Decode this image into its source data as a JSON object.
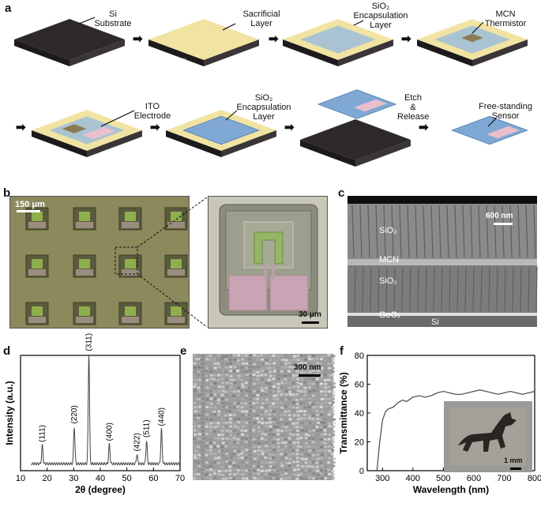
{
  "panels": {
    "a": {
      "label": "a",
      "steps": [
        {
          "l1": "Si",
          "l2": "Substrate"
        },
        {
          "l1": "Sacrificial",
          "l2": "Layer"
        },
        {
          "l1": "SiO₂",
          "l2": "Encapsulation",
          "l3": "Layer"
        },
        {
          "l1": "MCN",
          "l2": "Thermistor"
        },
        {
          "l1": "ITO",
          "l2": "Electrode"
        },
        {
          "l1": "SiO₂",
          "l2": "Encapsulation",
          "l3": "Layer"
        },
        {
          "l1": "Etch",
          "l2": "&",
          "l3": "Release"
        },
        {
          "l1": "Free-standing",
          "l2": "Sensor"
        }
      ],
      "si_text": "Si",
      "colors": {
        "substrate": "#2e2a2b",
        "sacrificial": "#f1e3a2",
        "sio2": "#a9c3d2",
        "mcn": "#8c7a52",
        "ito": "#e9bfcb",
        "blue": "#7fa8d4"
      }
    },
    "b": {
      "label": "b",
      "scale_left": "150 μm",
      "scale_right": "30 μm"
    },
    "c": {
      "label": "c",
      "scale": "600 nm",
      "layers": {
        "sio2_top": "SiO₂",
        "mcn": "MCN",
        "sio2_bot": "SiO₂",
        "geox": "GeOₓ",
        "si": "Si"
      }
    },
    "d": {
      "label": "d"
    },
    "e": {
      "label": "e",
      "scale": "300 nm"
    },
    "f": {
      "label": "f",
      "scale": "1 mm"
    }
  },
  "chart_data": [
    {
      "panel": "d",
      "type": "line",
      "xlabel": "2θ (degree)",
      "ylabel": "Intensity (a.u.)",
      "xlim": [
        10,
        70
      ],
      "xticks": [
        10,
        20,
        30,
        40,
        50,
        60,
        70
      ],
      "y_ticks_shown": false,
      "peaks": [
        {
          "x": 18.2,
          "h": 0.16,
          "label": "(111)"
        },
        {
          "x": 30.2,
          "h": 0.32,
          "label": "(220)"
        },
        {
          "x": 35.7,
          "h": 0.95,
          "label": "(311)"
        },
        {
          "x": 43.4,
          "h": 0.17,
          "label": "(400)"
        },
        {
          "x": 53.8,
          "h": 0.08,
          "label": "(422)"
        },
        {
          "x": 57.4,
          "h": 0.2,
          "label": "(511)"
        },
        {
          "x": 63.0,
          "h": 0.3,
          "label": "(440)"
        }
      ],
      "baseline": 0.06
    },
    {
      "panel": "f",
      "type": "line",
      "xlabel": "Wavelength (nm)",
      "ylabel": "Transmittance (%)",
      "xlim": [
        250,
        800
      ],
      "ylim": [
        0,
        80
      ],
      "xticks": [
        300,
        400,
        500,
        600,
        700,
        800
      ],
      "yticks": [
        0,
        20,
        40,
        60,
        80
      ],
      "x": [
        282,
        290,
        300,
        310,
        320,
        335,
        350,
        365,
        380,
        400,
        420,
        440,
        460,
        480,
        500,
        520,
        540,
        560,
        580,
        600,
        620,
        640,
        660,
        680,
        700,
        720,
        740,
        760,
        780,
        800
      ],
      "y": [
        0,
        18,
        35,
        41,
        43,
        44,
        47,
        49,
        48,
        51,
        52,
        51,
        52,
        54,
        55,
        54,
        53,
        53,
        54,
        55,
        56,
        55,
        54,
        53,
        54,
        55,
        54,
        53,
        54,
        55
      ]
    }
  ]
}
